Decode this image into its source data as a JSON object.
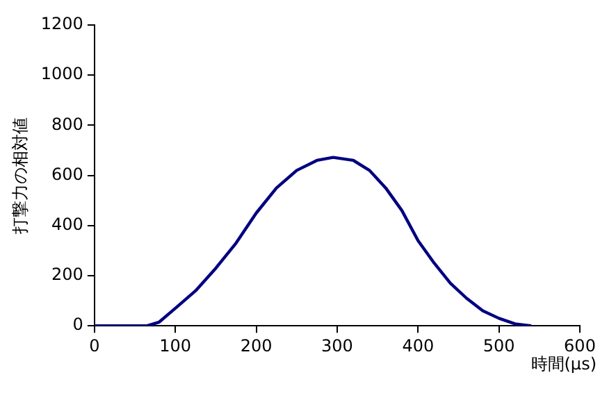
{
  "chart_data": {
    "type": "line",
    "xlabel": "時間(μs)",
    "ylabel": "打撃力の相対値",
    "x": [
      0,
      30,
      65,
      80,
      100,
      125,
      150,
      175,
      200,
      225,
      250,
      275,
      295,
      320,
      340,
      360,
      380,
      400,
      420,
      440,
      460,
      480,
      500,
      520,
      540
    ],
    "series": [
      {
        "color": "#000080",
        "values": [
          0,
          0,
          0,
          15,
          70,
          140,
          230,
          330,
          450,
          550,
          620,
          660,
          672,
          660,
          620,
          550,
          460,
          340,
          250,
          170,
          110,
          60,
          30,
          8,
          0
        ]
      }
    ],
    "xlim": [
      0,
      600
    ],
    "xticks": [
      0,
      100,
      200,
      300,
      400,
      500,
      600
    ],
    "ylim": [
      0,
      1200
    ],
    "yticks": [
      0,
      200,
      400,
      600,
      800,
      1000,
      1200
    ],
    "grid": false,
    "legend": false,
    "marker": "none",
    "line_style": "solid"
  }
}
